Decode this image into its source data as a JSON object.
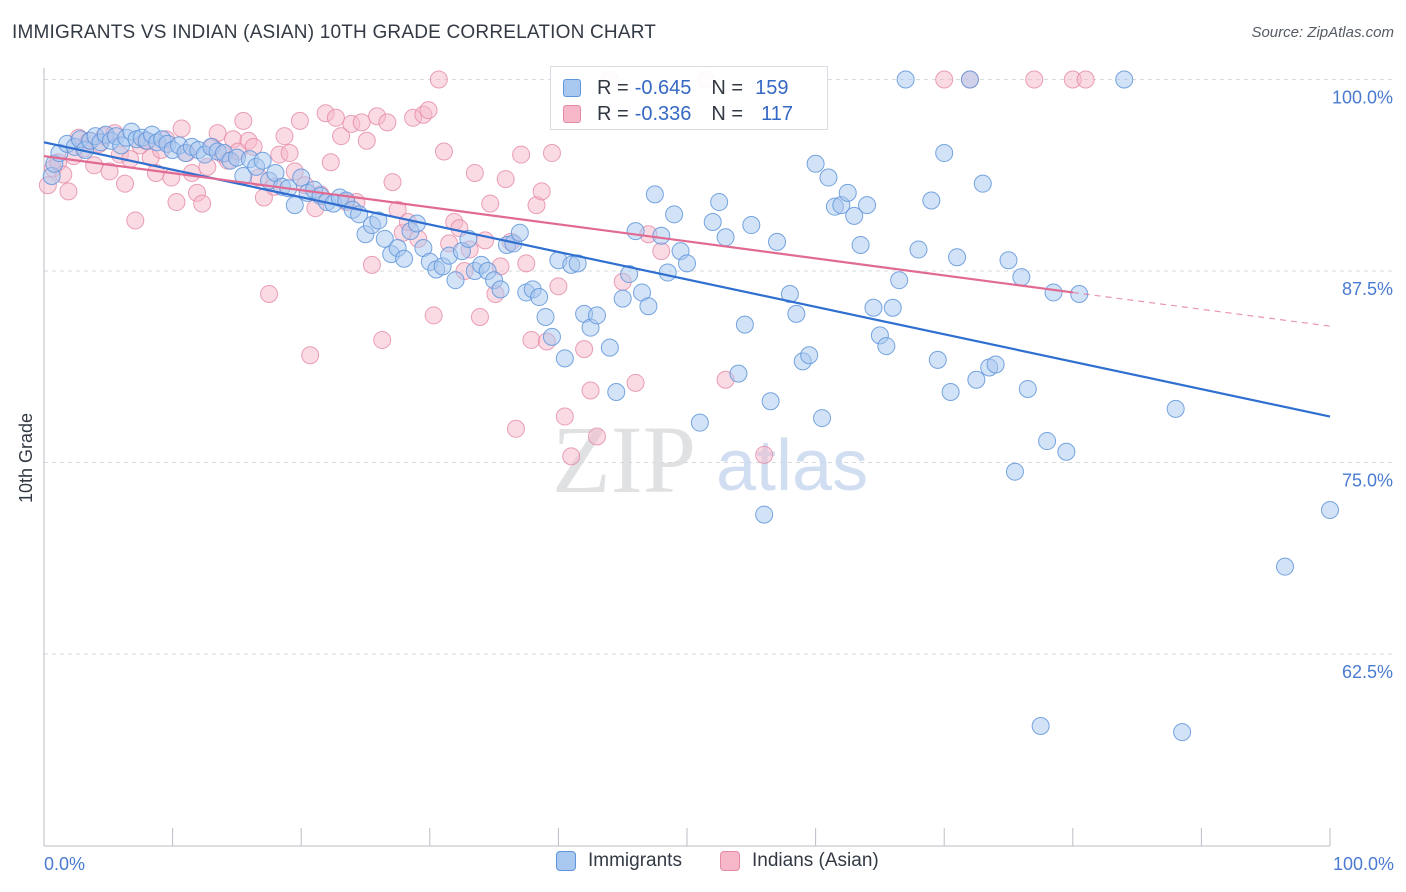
{
  "header": {
    "title": "IMMIGRANTS VS INDIAN (ASIAN) 10TH GRADE CORRELATION CHART",
    "source": "Source: ZipAtlas.com"
  },
  "watermark": {
    "zip": "ZIP",
    "atlas": "atlas"
  },
  "legend_top": {
    "rows": [
      {
        "r_label": "R =",
        "r_value": "-0.645",
        "n_label": "N =",
        "n_value": "159"
      },
      {
        "r_label": "R =",
        "r_value": "-0.336",
        "n_label": "N =",
        "n_value": "117"
      }
    ]
  },
  "legend_bottom": {
    "items": [
      "Immigrants",
      "Indians (Asian)"
    ]
  },
  "colors": {
    "immigrants_fill": "#a8c8f0",
    "immigrants_stroke": "#5f95da",
    "immigrants_line": "#2f6fd0",
    "indians_fill": "#f6b8c9",
    "indians_stroke": "#e58aa6",
    "indians_line": "#e06a92",
    "tick_text": "#4a7bd0",
    "grid": "#d6d9de"
  },
  "chart_data": {
    "type": "scatter",
    "title": "IMMIGRANTS VS INDIAN (ASIAN) 10TH GRADE CORRELATION CHART",
    "xlabel": "",
    "ylabel": "10th Grade",
    "xlim": [
      0,
      100
    ],
    "ylim": [
      52.5,
      100.5
    ],
    "x_tick_labels": [
      "0.0%",
      "100.0%"
    ],
    "y_ticks": [
      62.5,
      75.0,
      87.5,
      100.0
    ],
    "y_tick_labels": [
      "62.5%",
      "75.0%",
      "87.5%",
      "100.0%"
    ],
    "grid": true,
    "legend_position": "top-center",
    "series": [
      {
        "name": "Immigrants",
        "r": -0.645,
        "n": 159,
        "trend": {
          "x": [
            0,
            100
          ],
          "y": [
            95.9,
            78.0
          ]
        },
        "points": [
          [
            0.6,
            93.7
          ],
          [
            0.8,
            94.5
          ],
          [
            1.2,
            95.2
          ],
          [
            1.8,
            95.8
          ],
          [
            2.4,
            95.6
          ],
          [
            2.8,
            96.1
          ],
          [
            3.2,
            95.4
          ],
          [
            3.6,
            96.0
          ],
          [
            4.0,
            96.3
          ],
          [
            4.4,
            95.9
          ],
          [
            4.8,
            96.4
          ],
          [
            5.2,
            96.0
          ],
          [
            5.6,
            96.3
          ],
          [
            6.0,
            95.7
          ],
          [
            6.4,
            96.2
          ],
          [
            6.8,
            96.6
          ],
          [
            7.2,
            96.1
          ],
          [
            7.6,
            96.2
          ],
          [
            8.0,
            96.0
          ],
          [
            8.4,
            96.4
          ],
          [
            8.8,
            95.9
          ],
          [
            9.2,
            96.1
          ],
          [
            9.6,
            95.8
          ],
          [
            10.0,
            95.4
          ],
          [
            10.5,
            95.7
          ],
          [
            11.0,
            95.2
          ],
          [
            11.5,
            95.6
          ],
          [
            12.0,
            95.4
          ],
          [
            12.5,
            95.1
          ],
          [
            13.0,
            95.6
          ],
          [
            13.5,
            95.3
          ],
          [
            14.0,
            95.2
          ],
          [
            14.5,
            94.7
          ],
          [
            15.0,
            94.9
          ],
          [
            15.5,
            93.7
          ],
          [
            16.0,
            94.8
          ],
          [
            16.5,
            94.3
          ],
          [
            17.0,
            94.7
          ],
          [
            17.5,
            93.4
          ],
          [
            18.0,
            93.9
          ],
          [
            18.5,
            93.0
          ],
          [
            19.0,
            92.9
          ],
          [
            19.5,
            91.8
          ],
          [
            20.0,
            93.6
          ],
          [
            20.5,
            92.6
          ],
          [
            21.0,
            92.8
          ],
          [
            21.5,
            92.4
          ],
          [
            22.0,
            92.0
          ],
          [
            22.5,
            91.9
          ],
          [
            23.0,
            92.3
          ],
          [
            23.5,
            92.1
          ],
          [
            24.0,
            91.5
          ],
          [
            24.5,
            91.2
          ],
          [
            25.0,
            89.9
          ],
          [
            25.5,
            90.5
          ],
          [
            26.0,
            90.8
          ],
          [
            26.5,
            89.6
          ],
          [
            27.0,
            88.6
          ],
          [
            27.5,
            89.0
          ],
          [
            28.0,
            88.3
          ],
          [
            28.5,
            90.1
          ],
          [
            29.0,
            90.6
          ],
          [
            29.5,
            89.0
          ],
          [
            30.0,
            88.1
          ],
          [
            30.5,
            87.6
          ],
          [
            31.0,
            87.8
          ],
          [
            31.5,
            88.5
          ],
          [
            32.0,
            86.9
          ],
          [
            32.5,
            88.8
          ],
          [
            33.0,
            89.6
          ],
          [
            33.5,
            87.5
          ],
          [
            34.0,
            87.9
          ],
          [
            34.5,
            87.5
          ],
          [
            35.0,
            86.9
          ],
          [
            35.5,
            86.3
          ],
          [
            36.0,
            89.2
          ],
          [
            36.5,
            89.3
          ],
          [
            37.0,
            90.0
          ],
          [
            37.5,
            86.1
          ],
          [
            38.0,
            86.3
          ],
          [
            38.5,
            85.8
          ],
          [
            39.0,
            84.5
          ],
          [
            39.5,
            83.2
          ],
          [
            40.0,
            88.2
          ],
          [
            40.5,
            81.8
          ],
          [
            41.0,
            87.9
          ],
          [
            41.5,
            88.0
          ],
          [
            42.0,
            84.7
          ],
          [
            42.5,
            83.8
          ],
          [
            43.0,
            84.6
          ],
          [
            44.0,
            82.5
          ],
          [
            44.5,
            79.6
          ],
          [
            45.0,
            85.7
          ],
          [
            45.5,
            87.3
          ],
          [
            46.0,
            90.1
          ],
          [
            46.5,
            86.1
          ],
          [
            47.0,
            85.2
          ],
          [
            47.5,
            92.5
          ],
          [
            48.0,
            89.8
          ],
          [
            48.5,
            87.4
          ],
          [
            49.0,
            91.2
          ],
          [
            49.5,
            88.8
          ],
          [
            50.0,
            88.0
          ],
          [
            51.0,
            77.6
          ],
          [
            52.0,
            90.7
          ],
          [
            52.5,
            92.0
          ],
          [
            53.0,
            89.7
          ],
          [
            54.0,
            80.8
          ],
          [
            54.5,
            84.0
          ],
          [
            55.0,
            90.5
          ],
          [
            56.0,
            71.6
          ],
          [
            56.5,
            79.0
          ],
          [
            57.0,
            89.4
          ],
          [
            58.0,
            86.0
          ],
          [
            58.5,
            84.7
          ],
          [
            59.0,
            81.6
          ],
          [
            59.5,
            82.0
          ],
          [
            60.0,
            94.5
          ],
          [
            60.5,
            77.9
          ],
          [
            61.0,
            93.6
          ],
          [
            61.5,
            91.7
          ],
          [
            62.0,
            91.8
          ],
          [
            62.5,
            92.6
          ],
          [
            63.0,
            91.1
          ],
          [
            63.5,
            89.2
          ],
          [
            64.0,
            91.8
          ],
          [
            64.5,
            85.1
          ],
          [
            65.0,
            83.3
          ],
          [
            65.5,
            82.6
          ],
          [
            66.0,
            85.1
          ],
          [
            66.5,
            86.9
          ],
          [
            67.0,
            100.0
          ],
          [
            68.0,
            88.9
          ],
          [
            69.0,
            92.1
          ],
          [
            69.5,
            81.7
          ],
          [
            70.0,
            95.2
          ],
          [
            70.5,
            79.6
          ],
          [
            71.0,
            88.4
          ],
          [
            72.0,
            100.0
          ],
          [
            72.5,
            80.4
          ],
          [
            73.0,
            93.2
          ],
          [
            73.5,
            81.2
          ],
          [
            74.0,
            81.4
          ],
          [
            75.0,
            88.2
          ],
          [
            75.5,
            74.4
          ],
          [
            76.0,
            87.1
          ],
          [
            76.5,
            79.8
          ],
          [
            77.5,
            57.8
          ],
          [
            78.0,
            76.4
          ],
          [
            78.5,
            86.1
          ],
          [
            79.5,
            75.7
          ],
          [
            80.5,
            86.0
          ],
          [
            84.0,
            100.0
          ],
          [
            88.0,
            78.5
          ],
          [
            88.5,
            57.4
          ],
          [
            96.5,
            68.2
          ],
          [
            100.0,
            71.9
          ]
        ]
      },
      {
        "name": "Indians (Asian)",
        "r": -0.336,
        "n": 117,
        "trend": {
          "x": [
            0,
            80
          ],
          "y": [
            95.0,
            86.1
          ]
        },
        "trend_dashed": {
          "x": [
            80,
            100
          ],
          "y": [
            86.1,
            83.9
          ]
        },
        "points": [
          [
            0.3,
            93.1
          ],
          [
            0.7,
            94.2
          ],
          [
            1.1,
            94.6
          ],
          [
            1.5,
            93.8
          ],
          [
            1.9,
            92.7
          ],
          [
            2.3,
            95.0
          ],
          [
            2.7,
            96.2
          ],
          [
            3.1,
            95.5
          ],
          [
            3.5,
            96.0
          ],
          [
            3.9,
            94.4
          ],
          [
            4.3,
            95.8
          ],
          [
            4.7,
            96.3
          ],
          [
            5.1,
            94.0
          ],
          [
            5.5,
            96.5
          ],
          [
            5.9,
            95.1
          ],
          [
            6.3,
            93.2
          ],
          [
            6.7,
            94.8
          ],
          [
            7.1,
            90.8
          ],
          [
            7.5,
            95.7
          ],
          [
            7.9,
            96.0
          ],
          [
            8.3,
            94.9
          ],
          [
            8.7,
            93.9
          ],
          [
            9.1,
            95.4
          ],
          [
            9.5,
            96.1
          ],
          [
            9.9,
            93.6
          ],
          [
            10.3,
            92.0
          ],
          [
            10.7,
            96.8
          ],
          [
            11.1,
            95.2
          ],
          [
            11.5,
            93.9
          ],
          [
            11.9,
            92.6
          ],
          [
            12.3,
            91.9
          ],
          [
            12.7,
            94.3
          ],
          [
            13.1,
            95.6
          ],
          [
            13.5,
            96.5
          ],
          [
            13.9,
            95.1
          ],
          [
            14.3,
            94.7
          ],
          [
            14.7,
            96.1
          ],
          [
            15.1,
            95.3
          ],
          [
            15.5,
            97.3
          ],
          [
            15.9,
            96.0
          ],
          [
            16.3,
            95.6
          ],
          [
            16.7,
            93.6
          ],
          [
            17.1,
            92.3
          ],
          [
            17.5,
            86.0
          ],
          [
            17.9,
            93.0
          ],
          [
            18.3,
            95.1
          ],
          [
            18.7,
            96.3
          ],
          [
            19.1,
            95.2
          ],
          [
            19.5,
            94.0
          ],
          [
            19.9,
            97.3
          ],
          [
            20.3,
            93.1
          ],
          [
            20.7,
            82.0
          ],
          [
            21.1,
            91.6
          ],
          [
            21.5,
            92.5
          ],
          [
            21.9,
            97.8
          ],
          [
            22.3,
            94.6
          ],
          [
            22.7,
            97.5
          ],
          [
            23.1,
            96.3
          ],
          [
            23.5,
            92.0
          ],
          [
            23.9,
            97.1
          ],
          [
            24.3,
            92.0
          ],
          [
            24.7,
            97.2
          ],
          [
            25.1,
            96.0
          ],
          [
            25.5,
            87.9
          ],
          [
            25.9,
            97.6
          ],
          [
            26.3,
            83.0
          ],
          [
            26.7,
            97.2
          ],
          [
            27.1,
            93.3
          ],
          [
            27.5,
            91.5
          ],
          [
            27.9,
            90.0
          ],
          [
            28.3,
            90.7
          ],
          [
            28.7,
            97.5
          ],
          [
            29.1,
            89.6
          ],
          [
            29.5,
            97.7
          ],
          [
            29.9,
            98.0
          ],
          [
            30.3,
            84.6
          ],
          [
            30.7,
            100.0
          ],
          [
            31.1,
            95.3
          ],
          [
            31.5,
            89.3
          ],
          [
            31.9,
            90.7
          ],
          [
            32.3,
            90.3
          ],
          [
            32.7,
            87.5
          ],
          [
            33.1,
            88.9
          ],
          [
            33.5,
            93.9
          ],
          [
            33.9,
            84.5
          ],
          [
            34.3,
            89.5
          ],
          [
            34.7,
            91.9
          ],
          [
            35.1,
            86.0
          ],
          [
            35.5,
            87.8
          ],
          [
            35.9,
            93.5
          ],
          [
            36.3,
            89.4
          ],
          [
            36.7,
            77.2
          ],
          [
            37.1,
            95.1
          ],
          [
            37.5,
            88.0
          ],
          [
            37.9,
            83.0
          ],
          [
            38.3,
            91.8
          ],
          [
            38.7,
            92.7
          ],
          [
            39.1,
            82.9
          ],
          [
            39.5,
            95.2
          ],
          [
            40.0,
            86.5
          ],
          [
            40.5,
            78.0
          ],
          [
            41.0,
            75.4
          ],
          [
            42.0,
            82.4
          ],
          [
            42.5,
            79.7
          ],
          [
            43.0,
            76.7
          ],
          [
            44.0,
            100.0
          ],
          [
            45.0,
            86.8
          ],
          [
            46.0,
            80.2
          ],
          [
            47.0,
            89.9
          ],
          [
            48.0,
            88.8
          ],
          [
            51.5,
            100.0
          ],
          [
            53.0,
            80.4
          ],
          [
            56.0,
            75.5
          ],
          [
            70.0,
            100.0
          ],
          [
            72.0,
            100.0
          ],
          [
            77.0,
            100.0
          ],
          [
            80.0,
            100.0
          ],
          [
            81.0,
            100.0
          ]
        ]
      }
    ]
  }
}
